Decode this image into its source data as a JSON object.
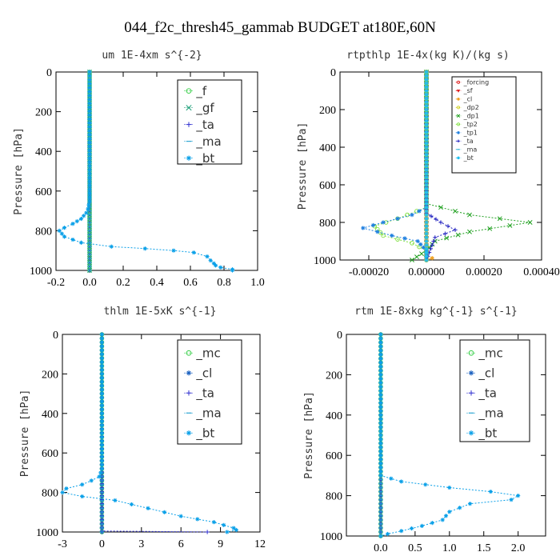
{
  "figure_title": "044_f2c_thresh45_gammab  BUDGET at180E,60N",
  "chart_data": [
    {
      "type": "line",
      "title": "um  1E-4xm s^{-2}",
      "ylabel": "Pressure [hPa]",
      "ylim": [
        1000,
        0
      ],
      "xlim": [
        -0.2,
        1.0
      ],
      "yticks": [
        0,
        200,
        400,
        600,
        800,
        1000
      ],
      "xticks": [
        -0.2,
        0.0,
        0.2,
        0.4,
        0.6,
        0.8,
        1.0
      ],
      "xtick_labels": [
        "-0.2",
        "0.0",
        "0.2",
        "0.4",
        "0.6",
        "0.8",
        "1.0"
      ],
      "legend": "top-right",
      "series": [
        {
          "name": "_f",
          "color": "#2ecc40",
          "marker": "o",
          "points": [
            [
              0,
              0
            ],
            [
              0,
              100
            ],
            [
              0,
              200
            ],
            [
              0,
              300
            ],
            [
              0,
              400
            ],
            [
              0,
              500
            ],
            [
              0,
              600
            ],
            [
              0,
              700
            ],
            [
              0,
              800
            ],
            [
              0,
              900
            ],
            [
              0,
              1000
            ]
          ]
        },
        {
          "name": "_gf",
          "color": "#1a9e77",
          "marker": "x",
          "points": [
            [
              0,
              0
            ],
            [
              0,
              200
            ],
            [
              0,
              400
            ],
            [
              0,
              600
            ],
            [
              0,
              800
            ],
            [
              0,
              1000
            ]
          ]
        },
        {
          "name": "_ta",
          "color": "#3030d0",
          "marker": "+",
          "points": [
            [
              0,
              0
            ],
            [
              0,
              500
            ],
            [
              0,
              1000
            ]
          ]
        },
        {
          "name": "_ma",
          "color": "#20a0d0",
          "marker": "-",
          "points": [
            [
              0,
              0
            ],
            [
              0,
              500
            ],
            [
              0,
              1000
            ]
          ]
        },
        {
          "name": "_bt",
          "color": "#0aa0e8",
          "marker": "*",
          "points": [
            [
              0,
              0
            ],
            [
              0,
              650
            ],
            [
              -0.01,
              690
            ],
            [
              -0.02,
              710
            ],
            [
              -0.05,
              740
            ],
            [
              -0.1,
              765
            ],
            [
              -0.15,
              785
            ],
            [
              -0.18,
              800
            ],
            [
              -0.15,
              830
            ],
            [
              -0.05,
              860
            ],
            [
              0.13,
              880
            ],
            [
              0.33,
              890
            ],
            [
              0.5,
              900
            ],
            [
              0.62,
              910
            ],
            [
              0.7,
              930
            ],
            [
              0.72,
              950
            ],
            [
              0.74,
              965
            ],
            [
              0.75,
              975
            ],
            [
              0.78,
              985
            ],
            [
              0.85,
              995
            ],
            [
              0.85,
              1000
            ]
          ]
        }
      ]
    },
    {
      "type": "line",
      "title": "rtpthlp  1E-4x(kg K)/(kg s)",
      "ylabel": "Pressure [hPa]",
      "ylim": [
        1000,
        0
      ],
      "xlim": [
        -0.0003,
        0.0004
      ],
      "yticks": [
        0,
        200,
        400,
        600,
        800,
        1000
      ],
      "xticks": [
        -0.0002,
        0.0,
        0.0002,
        0.0004
      ],
      "xtick_labels": [
        "-0.00020",
        "0.00000",
        "0.00020",
        "0.00040"
      ],
      "legend": "top-right",
      "series": [
        {
          "name": "_forcing",
          "color": "#e02020",
          "marker": "o",
          "points": [
            [
              0,
              0
            ],
            [
              0,
              200
            ],
            [
              0,
              400
            ],
            [
              0,
              600
            ],
            [
              0,
              800
            ],
            [
              0,
              1000
            ]
          ]
        },
        {
          "name": "_sf",
          "color": "#e02020",
          "marker": "v",
          "points": [
            [
              0,
              0
            ],
            [
              0,
              1000
            ]
          ]
        },
        {
          "name": "_cl",
          "color": "#f0a020",
          "marker": "*",
          "points": [
            [
              0,
              0
            ],
            [
              0,
              980
            ],
            [
              2e-05,
              990
            ],
            [
              0,
              1000
            ]
          ]
        },
        {
          "name": "_dp2",
          "color": "#d0d020",
          "marker": "o",
          "points": [
            [
              0,
              0
            ],
            [
              0,
              1000
            ]
          ]
        },
        {
          "name": "_dp1",
          "color": "#20a020",
          "marker": "x",
          "points": [
            [
              0,
              0
            ],
            [
              0,
              700
            ],
            [
              0.00015,
              760
            ],
            [
              0.00036,
              800
            ],
            [
              0.00015,
              850
            ],
            [
              3e-05,
              900
            ],
            [
              0,
              950
            ],
            [
              -5e-05,
              1000
            ]
          ]
        },
        {
          "name": "_tp2",
          "color": "#80e040",
          "marker": "o",
          "points": [
            [
              0,
              0
            ],
            [
              0,
              720
            ],
            [
              -0.0001,
              780
            ],
            [
              -0.00018,
              820
            ],
            [
              -0.00015,
              870
            ],
            [
              -5e-05,
              910
            ],
            [
              0,
              950
            ],
            [
              0,
              1000
            ]
          ]
        },
        {
          "name": "_tp1",
          "color": "#2080e0",
          "marker": "*",
          "points": [
            [
              0,
              0
            ],
            [
              0,
              720
            ],
            [
              -5e-05,
              760
            ],
            [
              -0.00015,
              800
            ],
            [
              -0.00022,
              830
            ],
            [
              -0.00012,
              870
            ],
            [
              -3e-05,
              900
            ],
            [
              0,
              950
            ],
            [
              0,
              1000
            ]
          ]
        },
        {
          "name": "_ta",
          "color": "#2020c0",
          "marker": "+",
          "points": [
            [
              0,
              0
            ],
            [
              0,
              750
            ],
            [
              5e-05,
              800
            ],
            [
              0.0001,
              840
            ],
            [
              3e-05,
              880
            ],
            [
              0,
              1000
            ]
          ]
        },
        {
          "name": "_ma",
          "color": "#20b0d0",
          "marker": "-",
          "points": [
            [
              0,
              0
            ],
            [
              0,
              1000
            ]
          ]
        },
        {
          "name": "_bt",
          "color": "#20c0f0",
          "marker": "*",
          "points": [
            [
              0,
              0
            ],
            [
              0,
              1000
            ]
          ]
        }
      ]
    },
    {
      "type": "line",
      "title": "thlm  1E-5xK s^{-1}",
      "ylabel": "Pressure [hPa]",
      "ylim": [
        1000,
        0
      ],
      "xlim": [
        -3,
        12
      ],
      "yticks": [
        0,
        200,
        400,
        600,
        800,
        1000
      ],
      "xticks": [
        -3,
        0,
        3,
        6,
        9,
        12
      ],
      "xtick_labels": [
        "-3",
        "0",
        "3",
        "6",
        "9",
        "12"
      ],
      "legend": "top-right",
      "series": [
        {
          "name": "_mc",
          "color": "#2ecc40",
          "marker": "o",
          "points": [
            [
              0,
              0
            ],
            [
              0,
              200
            ],
            [
              0,
              400
            ],
            [
              0,
              600
            ],
            [
              0,
              800
            ],
            [
              0,
              1000
            ]
          ]
        },
        {
          "name": "_cl",
          "color": "#1a60c0",
          "marker": "*",
          "points": [
            [
              0,
              0
            ],
            [
              0,
              1000
            ]
          ]
        },
        {
          "name": "_ta",
          "color": "#3030d0",
          "marker": "+",
          "points": [
            [
              0,
              0
            ],
            [
              0,
              995
            ],
            [
              8,
              1000
            ]
          ]
        },
        {
          "name": "_ma",
          "color": "#20a0d0",
          "marker": "-",
          "points": [
            [
              0,
              0
            ],
            [
              0,
              1000
            ]
          ]
        },
        {
          "name": "_bt",
          "color": "#0aa0e8",
          "marker": "*",
          "points": [
            [
              0,
              0
            ],
            [
              0,
              680
            ],
            [
              -0.2,
              720
            ],
            [
              -0.8,
              740
            ],
            [
              -1.5,
              760
            ],
            [
              -2.7,
              780
            ],
            [
              -3.0,
              800
            ],
            [
              -1.5,
              820
            ],
            [
              1.0,
              840
            ],
            [
              3.5,
              880
            ],
            [
              6.0,
              920
            ],
            [
              8.5,
              950
            ],
            [
              10.0,
              980
            ],
            [
              10.2,
              990
            ],
            [
              9.5,
              1000
            ]
          ]
        }
      ]
    },
    {
      "type": "line",
      "title": "rtm  1E-8xkg kg^{-1} s^{-1}",
      "ylabel": "Pressure [hPa]",
      "ylim": [
        1000,
        0
      ],
      "xlim": [
        -0.5,
        2.4
      ],
      "yticks": [
        0,
        200,
        400,
        600,
        800,
        1000
      ],
      "xticks": [
        0.0,
        0.5,
        1.0,
        1.5,
        2.0
      ],
      "xtick_labels": [
        "0.0",
        "0.5",
        "1.0",
        "1.5",
        "2.0"
      ],
      "legend": "top-right",
      "series": [
        {
          "name": "_mc",
          "color": "#2ecc40",
          "marker": "o",
          "points": [
            [
              0,
              0
            ],
            [
              0,
              200
            ],
            [
              0,
              400
            ],
            [
              0,
              600
            ],
            [
              0,
              800
            ],
            [
              0,
              1000
            ]
          ]
        },
        {
          "name": "_cl",
          "color": "#1a60c0",
          "marker": "*",
          "points": [
            [
              0,
              0
            ],
            [
              0,
              1000
            ]
          ]
        },
        {
          "name": "_ta",
          "color": "#3030d0",
          "marker": "+",
          "points": [
            [
              0,
              0
            ],
            [
              0,
              1000
            ]
          ]
        },
        {
          "name": "_ma",
          "color": "#20a0d0",
          "marker": "-",
          "points": [
            [
              0,
              0
            ],
            [
              0,
              1000
            ]
          ]
        },
        {
          "name": "_bt",
          "color": "#0aa0e8",
          "marker": "*",
          "points": [
            [
              0,
              0
            ],
            [
              0,
              700
            ],
            [
              0.3,
              730
            ],
            [
              1.0,
              760
            ],
            [
              1.6,
              780
            ],
            [
              2.0,
              800
            ],
            [
              1.9,
              820
            ],
            [
              1.3,
              840
            ],
            [
              1.0,
              880
            ],
            [
              0.9,
              920
            ],
            [
              0.6,
              950
            ],
            [
              0.3,
              975
            ],
            [
              0.1,
              990
            ],
            [
              0,
              1000
            ]
          ]
        }
      ]
    }
  ]
}
